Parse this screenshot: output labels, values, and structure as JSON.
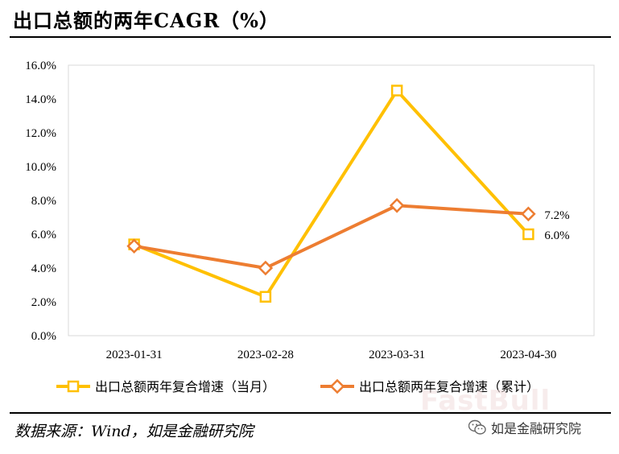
{
  "title": "出口总额的两年CAGR（%）",
  "source": "数据来源：Wind，如是金融研究院",
  "watermark": "FastBull",
  "brand": {
    "name": "如是金融研究院",
    "icon": "wechat-icon"
  },
  "chart_data": {
    "type": "line",
    "categories": [
      "2023-01-31",
      "2023-02-28",
      "2023-03-31",
      "2023-04-30"
    ],
    "ylim": [
      0,
      16
    ],
    "yticks": [
      0,
      2,
      4,
      6,
      8,
      10,
      12,
      14,
      16
    ],
    "ytick_labels": [
      "0.0%",
      "2.0%",
      "4.0%",
      "6.0%",
      "8.0%",
      "10.0%",
      "12.0%",
      "14.0%",
      "16.0%"
    ],
    "grid": false,
    "legend_position": "bottom",
    "series": [
      {
        "name": "出口总额两年复合增速（当月）",
        "values": [
          5.4,
          2.3,
          14.5,
          6.0
        ],
        "color": "#FFC000",
        "marker": "square",
        "labels": [
          "",
          "",
          "",
          "6.0%"
        ]
      },
      {
        "name": "出口总额两年复合增速（累计）",
        "values": [
          5.3,
          4.0,
          7.7,
          7.2
        ],
        "color": "#ED7D31",
        "marker": "diamond",
        "labels": [
          "",
          "",
          "",
          "7.2%"
        ]
      }
    ]
  }
}
